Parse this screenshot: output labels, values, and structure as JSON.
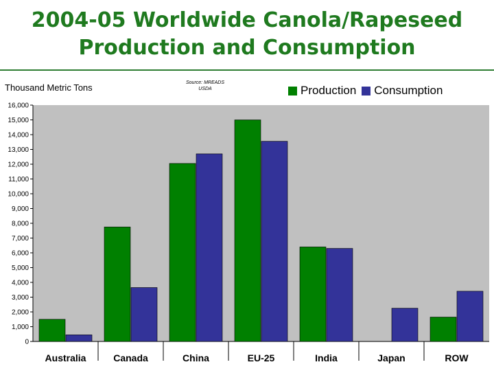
{
  "title_line1": "2004-05 Worldwide Canola/Rapeseed",
  "title_line2": "Production and Consumption",
  "colors": {
    "title": "#1f7a1f",
    "production": "#008000",
    "consumption": "#333399",
    "plot_bg": "#c0c0c0"
  },
  "chart_data": {
    "type": "bar",
    "ylabel": "Thousand Metric Tons",
    "source_line1": "Source: MREADS",
    "source_line2": "USDA",
    "categories": [
      "Australia",
      "Canada",
      "China",
      "EU-25",
      "India",
      "Japan",
      "ROW"
    ],
    "series": [
      {
        "name": "Production",
        "values": [
          1500,
          7750,
          12050,
          15000,
          6400,
          0,
          1650
        ]
      },
      {
        "name": "Consumption",
        "values": [
          450,
          3650,
          12700,
          13550,
          6300,
          2250,
          3400
        ]
      }
    ],
    "ylim": [
      0,
      16000
    ],
    "yticks": [
      "0",
      "1,000",
      "2,000",
      "3,000",
      "4,000",
      "5,000",
      "6,000",
      "7,000",
      "8,000",
      "9,000",
      "10,000",
      "11,000",
      "12,000",
      "13,000",
      "14,000",
      "15,000",
      "16,000"
    ],
    "grid": false,
    "legend": "top-right"
  }
}
